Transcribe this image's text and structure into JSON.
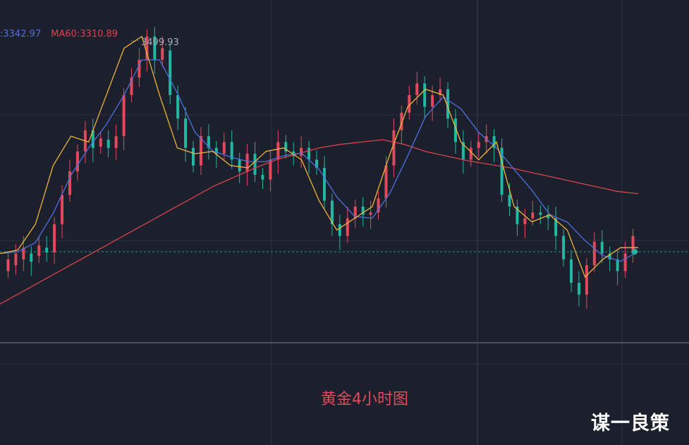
{
  "legend": {
    "ma_blue_text": ":3342.97",
    "ma60_text": "MA60:3310.89",
    "ma_blue_color": "#4f6fe0",
    "ma60_color": "#d9424f"
  },
  "caption": "黄金4小时图",
  "watermark": "谋一良策",
  "chart_data": {
    "type": "candlestick",
    "title": "",
    "peak_label": "3499.93",
    "colors": {
      "up": "#e24a5c",
      "down": "#1fb8a2",
      "ma_fast": "#f0b43a",
      "ma_mid": "#4f6fe0",
      "ma60": "#d9424f",
      "background": "#1b202c",
      "grid": "#2a3140"
    },
    "series": [
      {
        "name": "candles_high_low_path",
        "points": [
          [
            3290,
            3300
          ],
          [
            3295,
            3305
          ],
          [
            3300,
            3310
          ],
          [
            3305,
            3298
          ],
          [
            3303,
            3312
          ],
          [
            3310,
            3306
          ],
          [
            3306,
            3330
          ],
          [
            3330,
            3355
          ],
          [
            3355,
            3375
          ],
          [
            3375,
            3392
          ],
          [
            3392,
            3410
          ],
          [
            3410,
            3395
          ],
          [
            3396,
            3403
          ],
          [
            3402,
            3395
          ],
          [
            3395,
            3405
          ],
          [
            3405,
            3440
          ],
          [
            3440,
            3455
          ],
          [
            3455,
            3470
          ],
          [
            3470,
            3490
          ],
          [
            3490,
            3470
          ],
          [
            3470,
            3480
          ],
          [
            3478,
            3440
          ],
          [
            3440,
            3420
          ],
          [
            3420,
            3395
          ],
          [
            3395,
            3380
          ],
          [
            3380,
            3405
          ],
          [
            3405,
            3395
          ],
          [
            3395,
            3390
          ],
          [
            3390,
            3400
          ],
          [
            3400,
            3385
          ],
          [
            3385,
            3375
          ],
          [
            3375,
            3390
          ],
          [
            3390,
            3372
          ],
          [
            3372,
            3368
          ],
          [
            3368,
            3385
          ],
          [
            3385,
            3400
          ],
          [
            3400,
            3392
          ],
          [
            3392,
            3388
          ],
          [
            3388,
            3395
          ],
          [
            3395,
            3385
          ],
          [
            3385,
            3378
          ],
          [
            3378,
            3350
          ],
          [
            3350,
            3330
          ],
          [
            3330,
            3320
          ],
          [
            3320,
            3335
          ],
          [
            3335,
            3345
          ],
          [
            3345,
            3338
          ],
          [
            3338,
            3340
          ],
          [
            3340,
            3352
          ],
          [
            3352,
            3380
          ],
          [
            3380,
            3410
          ],
          [
            3410,
            3425
          ],
          [
            3425,
            3440
          ],
          [
            3440,
            3450
          ],
          [
            3450,
            3430
          ],
          [
            3430,
            3440
          ],
          [
            3440,
            3445
          ],
          [
            3445,
            3420
          ],
          [
            3420,
            3400
          ],
          [
            3400,
            3385
          ],
          [
            3385,
            3395
          ],
          [
            3395,
            3400
          ],
          [
            3400,
            3405
          ],
          [
            3405,
            3395
          ],
          [
            3395,
            3355
          ],
          [
            3355,
            3345
          ],
          [
            3345,
            3330
          ],
          [
            3330,
            3335
          ],
          [
            3335,
            3340
          ],
          [
            3340,
            3338
          ],
          [
            3338,
            3335
          ],
          [
            3335,
            3320
          ],
          [
            3320,
            3300
          ],
          [
            3300,
            3280
          ],
          [
            3280,
            3270
          ],
          [
            3270,
            3295
          ],
          [
            3295,
            3315
          ],
          [
            3315,
            3305
          ],
          [
            3305,
            3300
          ],
          [
            3300,
            3290
          ],
          [
            3290,
            3305
          ],
          [
            3305,
            3320
          ]
        ]
      },
      {
        "name": "MA60_approx",
        "values": [
          3262,
          3272,
          3282,
          3292,
          3302,
          3312,
          3322,
          3332,
          3342,
          3352,
          3362,
          3370,
          3378,
          3385,
          3390,
          3395,
          3398,
          3400,
          3402,
          3398,
          3392,
          3388,
          3384,
          3381,
          3378,
          3374,
          3370,
          3366,
          3362,
          3358,
          3356
        ]
      },
      {
        "name": "MA_fast_approx",
        "values": [
          3305,
          3308,
          3330,
          3380,
          3405,
          3400,
          3440,
          3480,
          3490,
          3440,
          3395,
          3390,
          3392,
          3380,
          3378,
          3392,
          3395,
          3385,
          3350,
          3325,
          3335,
          3345,
          3390,
          3430,
          3445,
          3440,
          3400,
          3385,
          3400,
          3345,
          3332,
          3338,
          3325,
          3285,
          3300,
          3310,
          3310
        ]
      }
    ]
  }
}
